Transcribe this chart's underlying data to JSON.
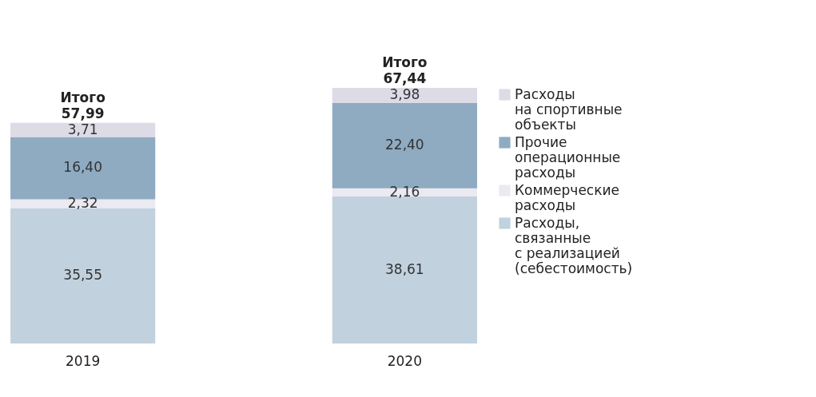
{
  "chart_data": {
    "type": "bar",
    "stacked": true,
    "categories": [
      "2019",
      "2020"
    ],
    "series": [
      {
        "name": "Расходы,\nсвязанные\nс реализацией\n(себестоимость)",
        "color": "#c1d1de",
        "values": [
          35.55,
          38.61
        ],
        "value_labels": [
          "35,55",
          "38,61"
        ]
      },
      {
        "name": "Коммерческие\nрасходы",
        "color": "#ebe9f1",
        "values": [
          2.32,
          2.16
        ],
        "value_labels": [
          "2,32",
          "2,16"
        ]
      },
      {
        "name": "Прочие\nоперационные\nрасходы",
        "color": "#8eabc1",
        "values": [
          16.4,
          22.4
        ],
        "value_labels": [
          "16,40",
          "22,40"
        ]
      },
      {
        "name": "Расходы\nна спортивные\nобъекты",
        "color": "#dddbe6",
        "values": [
          3.71,
          3.98
        ],
        "value_labels": [
          "3,71",
          "3,98"
        ]
      }
    ],
    "totals": [
      "Итого\n57,99",
      "Итого\n67,44"
    ],
    "legend": "right",
    "grid": false
  }
}
